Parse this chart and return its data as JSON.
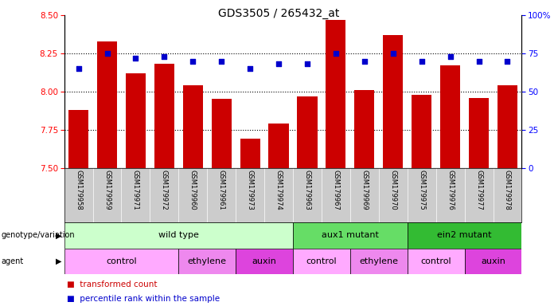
{
  "title": "GDS3505 / 265432_at",
  "samples": [
    "GSM179958",
    "GSM179959",
    "GSM179971",
    "GSM179972",
    "GSM179960",
    "GSM179961",
    "GSM179973",
    "GSM179974",
    "GSM179963",
    "GSM179967",
    "GSM179969",
    "GSM179970",
    "GSM179975",
    "GSM179976",
    "GSM179977",
    "GSM179978"
  ],
  "bar_values": [
    7.88,
    8.33,
    8.12,
    8.18,
    8.04,
    7.95,
    7.69,
    7.79,
    7.97,
    8.47,
    8.01,
    8.37,
    7.98,
    8.17,
    7.96,
    8.04
  ],
  "dot_values": [
    65,
    75,
    72,
    73,
    70,
    70,
    65,
    68,
    68,
    75,
    70,
    75,
    70,
    73,
    70,
    70
  ],
  "ylim_left": [
    7.5,
    8.5
  ],
  "ylim_right": [
    0,
    100
  ],
  "yticks_left": [
    7.5,
    7.75,
    8.0,
    8.25,
    8.5
  ],
  "yticks_right": [
    0,
    25,
    50,
    75,
    100
  ],
  "ytick_labels_right": [
    "0",
    "25",
    "50",
    "75",
    "100%"
  ],
  "bar_color": "#cc0000",
  "dot_color": "#0000cc",
  "genotype_groups": [
    {
      "label": "wild type",
      "start": 0,
      "end": 7,
      "color": "#ccffcc"
    },
    {
      "label": "aux1 mutant",
      "start": 8,
      "end": 11,
      "color": "#66dd66"
    },
    {
      "label": "ein2 mutant",
      "start": 12,
      "end": 15,
      "color": "#33bb33"
    }
  ],
  "agent_groups": [
    {
      "label": "control",
      "start": 0,
      "end": 3,
      "color": "#ffaaff"
    },
    {
      "label": "ethylene",
      "start": 4,
      "end": 5,
      "color": "#ee88ee"
    },
    {
      "label": "auxin",
      "start": 6,
      "end": 7,
      "color": "#dd44dd"
    },
    {
      "label": "control",
      "start": 8,
      "end": 9,
      "color": "#ffaaff"
    },
    {
      "label": "ethylene",
      "start": 10,
      "end": 11,
      "color": "#ee88ee"
    },
    {
      "label": "control",
      "start": 12,
      "end": 13,
      "color": "#ffaaff"
    },
    {
      "label": "auxin",
      "start": 14,
      "end": 15,
      "color": "#dd44dd"
    }
  ]
}
